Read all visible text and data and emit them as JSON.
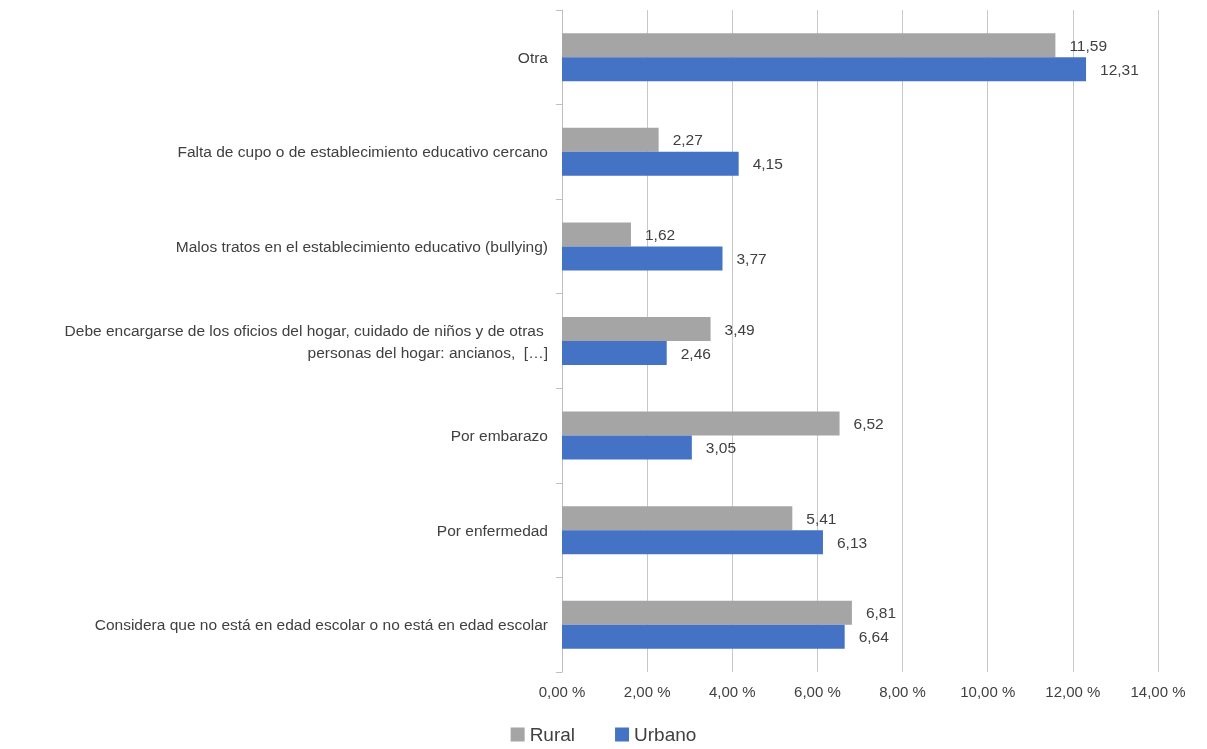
{
  "chart_data": {
    "type": "bar",
    "orientation": "horizontal",
    "categories": [
      "Otra",
      "Falta de cupo o de establecimiento educativo cercano",
      "Malos tratos en el establecimiento educativo (bullying)",
      "Debe encargarse de los oficios del hogar, cuidado de niños y de otras personas del hogar: ancianos,  […]",
      "Por embarazo",
      "Por enfermedad",
      "Considera que no está en edad escolar o no está en edad escolar"
    ],
    "series": [
      {
        "name": "Rural",
        "color": "#a5a5a5",
        "values": [
          11.59,
          2.27,
          1.62,
          3.49,
          6.52,
          5.41,
          6.81
        ],
        "value_labels": [
          "11,59",
          "2,27",
          "1,62",
          "3,49",
          "6,52",
          "5,41",
          "6,81"
        ]
      },
      {
        "name": "Urbano",
        "color": "#4472c4",
        "values": [
          12.31,
          4.15,
          3.77,
          2.46,
          3.05,
          6.13,
          6.64
        ],
        "value_labels": [
          "12,31",
          "4,15",
          "3,77",
          "2,46",
          "3,05",
          "6,13",
          "6,64"
        ]
      }
    ],
    "xlim": [
      0,
      14
    ],
    "xticks": [
      {
        "value": 0,
        "label": "0,00 %"
      },
      {
        "value": 2,
        "label": "2,00 %"
      },
      {
        "value": 4,
        "label": "4,00 %"
      },
      {
        "value": 6,
        "label": "6,00 %"
      },
      {
        "value": 8,
        "label": "8,00 %"
      },
      {
        "value": 10,
        "label": "10,00 %"
      },
      {
        "value": 12,
        "label": "12,00 %"
      },
      {
        "value": 14,
        "label": "14,00 %"
      }
    ],
    "grid": "x",
    "legend": "bottom"
  }
}
